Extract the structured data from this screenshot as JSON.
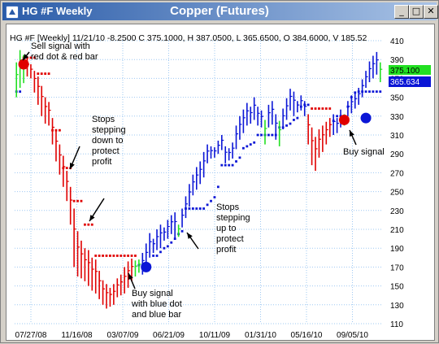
{
  "window": {
    "title": "HG #F Weekly",
    "chart_title": "Copper (Futures)",
    "buttons": {
      "minimize": "_",
      "maximize": "□",
      "close": "✕"
    }
  },
  "legend_text": "HG #F [Weekly] 11/21/10 -8.2500 C 375.1000, H 387.0500, L 365.6500, O 384.6000, V 185.52",
  "price_badges": {
    "green": "375.100",
    "blue": "365.634"
  },
  "annotations": [
    "Sell signal with\nred dot & red bar",
    "Stops\nstepping\ndown to\nprotect\nprofit",
    "Stops\nstepping\nup to\nprotect\nprofit",
    "Buy signal\nwith blue dot\nand blue bar",
    "Buy signal"
  ],
  "chart_data": {
    "type": "bar",
    "title": "Copper (Futures)",
    "subtitle": "HG #F [Weekly] 11/21/10",
    "ylim": [
      110,
      410
    ],
    "y_ticks": [
      110,
      130,
      150,
      170,
      190,
      210,
      230,
      250,
      270,
      290,
      310,
      330,
      350,
      370,
      390,
      410
    ],
    "x_ticks": [
      "07/27/08",
      "11/16/08",
      "03/07/09",
      "06/21/09",
      "10/11/09",
      "01/31/10",
      "05/16/10",
      "09/05/10"
    ],
    "last_bar": {
      "close": 375.1,
      "high": 387.05,
      "low": 365.65,
      "open": 384.6,
      "change": -8.25,
      "volume": 185.52
    },
    "bar_colors": {
      "up": "#0b16d6",
      "down": "#e00000",
      "neutral": "#22e022"
    },
    "series": [
      {
        "name": "price",
        "points": [
          [
            "g",
            387,
            350
          ],
          [
            "g",
            400,
            360
          ],
          [
            "g",
            395,
            365
          ],
          [
            "r",
            392,
            372
          ],
          [
            "r",
            385,
            370
          ],
          [
            "r",
            378,
            355
          ],
          [
            "r",
            372,
            342
          ],
          [
            "r",
            362,
            330
          ],
          [
            "r",
            350,
            322
          ],
          [
            "r",
            345,
            320
          ],
          [
            "r",
            328,
            300
          ],
          [
            "r",
            315,
            282
          ],
          [
            "r",
            300,
            268
          ],
          [
            "r",
            288,
            255
          ],
          [
            "r",
            272,
            240
          ],
          [
            "r",
            255,
            215
          ],
          [
            "r",
            232,
            170
          ],
          [
            "r",
            208,
            160
          ],
          [
            "r",
            198,
            158
          ],
          [
            "r",
            190,
            155
          ],
          [
            "r",
            188,
            150
          ],
          [
            "r",
            180,
            145
          ],
          [
            "r",
            178,
            142
          ],
          [
            "r",
            166,
            136
          ],
          [
            "r",
            156,
            130
          ],
          [
            "r",
            152,
            126
          ],
          [
            "r",
            148,
            128
          ],
          [
            "r",
            152,
            130
          ],
          [
            "r",
            158,
            138
          ],
          [
            "r",
            162,
            140
          ],
          [
            "r",
            170,
            142
          ],
          [
            "r",
            176,
            148
          ],
          [
            "r",
            179,
            155
          ],
          [
            "g",
            177,
            160
          ],
          [
            "g",
            178,
            164
          ],
          [
            "b",
            185,
            162
          ],
          [
            "b",
            195,
            168
          ],
          [
            "b",
            206,
            180
          ],
          [
            "b",
            200,
            185
          ],
          [
            "b",
            210,
            188
          ],
          [
            "b",
            215,
            190
          ],
          [
            "b",
            212,
            198
          ],
          [
            "b",
            220,
            200
          ],
          [
            "b",
            225,
            205
          ],
          [
            "b",
            228,
            200
          ],
          [
            "g",
            215,
            202
          ],
          [
            "b",
            232,
            212
          ],
          [
            "b",
            245,
            222
          ],
          [
            "b",
            258,
            234
          ],
          [
            "b",
            268,
            246
          ],
          [
            "b",
            276,
            252
          ],
          [
            "b",
            282,
            258
          ],
          [
            "b",
            292,
            265
          ],
          [
            "b",
            300,
            280
          ],
          [
            "b",
            298,
            285
          ],
          [
            "b",
            297,
            286
          ],
          [
            "b",
            304,
            290
          ],
          [
            "b",
            310,
            294
          ],
          [
            "b",
            298,
            280
          ],
          [
            "b",
            296,
            283
          ],
          [
            "b",
            302,
            285
          ],
          [
            "b",
            320,
            295
          ],
          [
            "b",
            330,
            305
          ],
          [
            "b",
            337,
            312
          ],
          [
            "b",
            344,
            320
          ],
          [
            "b",
            340,
            322
          ],
          [
            "b",
            350,
            326
          ],
          [
            "b",
            340,
            320
          ],
          [
            "b",
            336,
            318
          ],
          [
            "g",
            326,
            300
          ],
          [
            "b",
            342,
            318
          ],
          [
            "b",
            346,
            321
          ],
          [
            "b",
            332,
            305
          ],
          [
            "g",
            325,
            298
          ],
          [
            "b",
            338,
            316
          ],
          [
            "b",
            349,
            326
          ],
          [
            "b",
            359,
            336
          ],
          [
            "b",
            356,
            330
          ],
          [
            "b",
            346,
            334
          ],
          [
            "b",
            352,
            336
          ],
          [
            "b",
            346,
            330
          ],
          [
            "r",
            332,
            300
          ],
          [
            "r",
            318,
            278
          ],
          [
            "r",
            308,
            272
          ],
          [
            "r",
            316,
            286
          ],
          [
            "r",
            320,
            292
          ],
          [
            "r",
            324,
            300
          ],
          [
            "r",
            328,
            308
          ],
          [
            "b",
            332,
            310
          ],
          [
            "b",
            328,
            312
          ],
          [
            "b",
            337,
            318
          ],
          [
            "g",
            332,
            320
          ],
          [
            "b",
            346,
            330
          ],
          [
            "b",
            352,
            333
          ],
          [
            "b",
            354,
            338
          ],
          [
            "b",
            360,
            342
          ],
          [
            "b",
            369,
            350
          ],
          [
            "b",
            378,
            360
          ],
          [
            "b",
            388,
            366
          ],
          [
            "b",
            394,
            370
          ],
          [
            "b",
            398,
            374
          ],
          [
            "g",
            387,
            366
          ]
        ]
      },
      {
        "name": "stops",
        "points": [
          [
            "b",
            356
          ],
          [
            "b",
            356
          ],
          [
            "r",
            392
          ],
          [
            "r",
            392
          ],
          [
            "r",
            392
          ],
          [
            "r",
            392
          ],
          [
            "r",
            375
          ],
          [
            "r",
            375
          ],
          [
            "r",
            375
          ],
          [
            "r",
            375
          ],
          [
            "r",
            315
          ],
          [
            "r",
            315
          ],
          [
            "r",
            315
          ],
          [
            "r",
            275
          ],
          [
            "r",
            275
          ],
          [
            "r",
            275
          ],
          [
            "r",
            240
          ],
          [
            "r",
            240
          ],
          [
            "r",
            240
          ],
          [
            "r",
            215
          ],
          [
            "r",
            215
          ],
          [
            "r",
            215
          ],
          [
            "r",
            182
          ],
          [
            "r",
            182
          ],
          [
            "r",
            182
          ],
          [
            "r",
            182
          ],
          [
            "r",
            182
          ],
          [
            "r",
            182
          ],
          [
            "r",
            182
          ],
          [
            "r",
            182
          ],
          [
            "r",
            182
          ],
          [
            "r",
            182
          ],
          [
            "r",
            182
          ],
          [
            "r",
            182
          ],
          [
            "b",
            172
          ],
          [
            "b",
            172
          ],
          [
            "b",
            172
          ],
          [
            "b",
            172
          ],
          [
            "b",
            182
          ],
          [
            "b",
            182
          ],
          [
            "b",
            186
          ],
          [
            "b",
            190
          ],
          [
            "b",
            192
          ],
          [
            "b",
            196
          ],
          [
            "b",
            200
          ],
          [
            "b",
            205
          ],
          [
            "b",
            208
          ],
          [
            "b",
            232
          ],
          [
            "b",
            232
          ],
          [
            "b",
            232
          ],
          [
            "b",
            232
          ],
          [
            "b",
            232
          ],
          [
            "b",
            232
          ],
          [
            "b",
            236
          ],
          [
            "b",
            240
          ],
          [
            "b",
            244
          ],
          [
            "b",
            255
          ],
          [
            "b",
            278
          ],
          [
            "b",
            278
          ],
          [
            "b",
            278
          ],
          [
            "b",
            278
          ],
          [
            "b",
            282
          ],
          [
            "b",
            286
          ],
          [
            "b",
            296
          ],
          [
            "b",
            298
          ],
          [
            "b",
            300
          ],
          [
            "b",
            302
          ],
          [
            "b",
            310
          ],
          [
            "b",
            310
          ],
          [
            "b",
            310
          ],
          [
            "b",
            310
          ],
          [
            "b",
            310
          ],
          [
            "b",
            310
          ],
          [
            "b",
            318
          ],
          [
            "b",
            318
          ],
          [
            "b",
            320
          ],
          [
            "b",
            322
          ],
          [
            "b",
            326
          ],
          [
            "b",
            328
          ],
          [
            "b",
            340
          ],
          [
            "b",
            342
          ],
          [
            "b",
            342
          ],
          [
            "r",
            338
          ],
          [
            "r",
            338
          ],
          [
            "r",
            338
          ],
          [
            "r",
            338
          ],
          [
            "r",
            338
          ],
          [
            "r",
            338
          ],
          [
            "b",
            325
          ],
          [
            "b",
            330
          ],
          [
            "b",
            330
          ],
          [
            "b",
            330
          ],
          [
            "b",
            340
          ],
          [
            "b",
            350
          ],
          [
            "b",
            355
          ],
          [
            "b",
            356
          ],
          [
            "b",
            356
          ],
          [
            "b",
            356
          ],
          [
            "b",
            356
          ],
          [
            "b",
            356
          ],
          [
            "b",
            356
          ],
          [
            "b",
            356
          ]
        ]
      },
      {
        "name": "signals",
        "points": [
          [
            "r",
            2,
            385
          ],
          [
            "b",
            36,
            170
          ],
          [
            "r",
            91,
            326
          ],
          [
            "b",
            97,
            328
          ]
        ]
      }
    ]
  }
}
